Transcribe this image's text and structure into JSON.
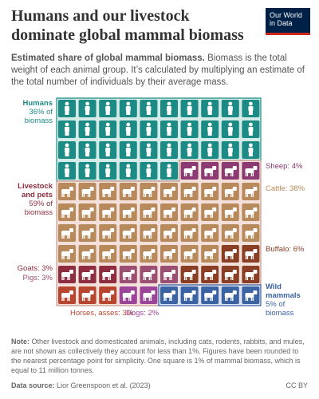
{
  "header": {
    "title": "Humans and our livestock dominate global mammal biomass",
    "logo": "Our World in Data",
    "subtitle_bold": "Estimated share of global mammal biomass.",
    "subtitle": "Biomass is the total weight of each animal group. It’s calculated by multiplying an estimate of the total number of individuals by their average mass."
  },
  "chart_data": {
    "type": "waffle",
    "groups": [
      {
        "title": "Humans",
        "label": "36% of biomass",
        "value": 36,
        "color": "#1d8b85"
      },
      {
        "label": "Sheep: 4%",
        "value": 4,
        "color": "#8b3a72"
      },
      {
        "label": "Cattle: 38%",
        "value": 38,
        "color": "#b88a5b"
      },
      {
        "label": "Buffalo: 6%",
        "value": 6,
        "color": "#8a3e23"
      },
      {
        "label": "Goats: 3%",
        "value": 3,
        "color": "#8e2d3f"
      },
      {
        "label": "Pigs: 3%",
        "value": 3,
        "color": "#9b4f73"
      },
      {
        "label": "Horses, asses: 3%",
        "value": 3,
        "color": "#b8462f"
      },
      {
        "label": "Dogs: 2%",
        "value": 2,
        "color": "#9c449a"
      },
      {
        "title": "Wild mammals",
        "label": "5% of biomass",
        "value": 5,
        "color": "#3b62a3"
      }
    ],
    "livestock": {
      "title": "Livestock and pets",
      "label": "59% of biomass",
      "value": 59,
      "color": "#8e2d3f"
    }
  },
  "footer": {
    "note_label": "Note:",
    "note": "Other livestock and domesticated animals, including cats, rodents, rabbits, and mules, are not shown as collectively they account for less than 1%. Figures have been rounded to the nearest percentage point for simplicity. One square is 1% of mammal biomass, which is equal to 11 million tonnes.",
    "source_label": "Data source:",
    "source": "Lior Greenspoon et al. (2023)",
    "license": "CC BY"
  }
}
